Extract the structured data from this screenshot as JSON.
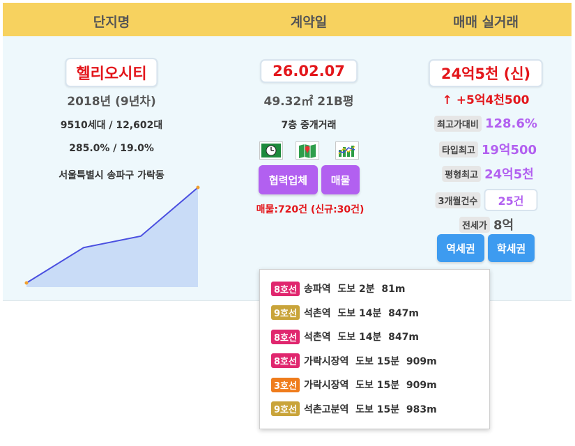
{
  "header": {
    "col1": "단지명",
    "col2": "계약일",
    "col3": "매매 실거래"
  },
  "complex": {
    "name": "헬리오시티",
    "built": "2018년 (9년차)",
    "households_parking": "9510세대 / 12,602대",
    "ratios": "285.0% / 19.0%",
    "address": "서울특별시 송파구 가락동"
  },
  "contract": {
    "date": "26.02.07",
    "area": "49.32㎡ 21B평",
    "floor_type": "7층 중개거래",
    "icons": [
      "clock-icon",
      "map-icon",
      "chart-icon"
    ],
    "partner_button": "협력업체",
    "listing_button": "매물",
    "listing_count": "매물:720건 (신규:30건)"
  },
  "trade": {
    "price": "24억5천 (신)",
    "change": "↑ +5억4천500",
    "peak_ratio_label": "최고가대비",
    "peak_ratio_value": "128.6%",
    "type_max_label": "타입최고",
    "type_max_value": "19억500",
    "size_max_label": "평형최고",
    "size_max_value": "24억5천",
    "three_month_label": "3개월건수",
    "three_month_value": "25건",
    "jeonse_label": "전세가",
    "jeonse_value": "8억",
    "station_button": "역세권",
    "school_button": "학세권"
  },
  "sparkline": {
    "values": [
      0,
      0.37,
      0.49,
      1.0
    ],
    "line_color": "#4a4fe0",
    "fill_color": "#c9dcf7",
    "dot_color": "#f0a030"
  },
  "stations": [
    {
      "line": "8호선",
      "color": "#e0266e",
      "text": "송파역  도보 2분  81m"
    },
    {
      "line": "9호선",
      "color": "#c9a43a",
      "text": "석촌역  도보 14분  847m"
    },
    {
      "line": "8호선",
      "color": "#e0266e",
      "text": "석촌역  도보 14분  847m"
    },
    {
      "line": "8호선",
      "color": "#e0266e",
      "text": "가락시장역  도보 15분  909m"
    },
    {
      "line": "3호선",
      "color": "#ef7c1c",
      "text": "가락시장역  도보 15분  909m"
    },
    {
      "line": "9호선",
      "color": "#c9a43a",
      "text": "석촌고분역  도보 15분  983m"
    }
  ]
}
